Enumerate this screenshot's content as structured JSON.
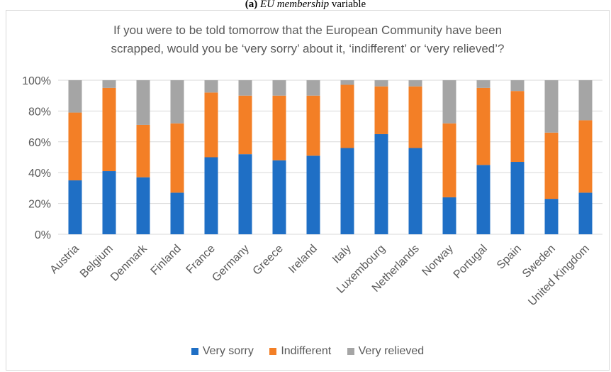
{
  "caption": {
    "label": "(a)",
    "variable": "EU membership",
    "suffix": " variable"
  },
  "chart_data": {
    "type": "bar",
    "stacked": true,
    "title_lines": [
      "If you were to be told tomorrow that the European Community have been",
      "scrapped, would you be ‘very sorry’ about it, ‘indifferent’ or ‘very relieved’?"
    ],
    "categories": [
      "Austria",
      "Belgium",
      "Denmark",
      "Finland",
      "France",
      "Germany",
      "Greece",
      "Ireland",
      "Italy",
      "Luxembourg",
      "Netherlands",
      "Norway",
      "Portugal",
      "Spain",
      "Sweden",
      "United Kingdom"
    ],
    "series": [
      {
        "name": "Very sorry",
        "color": "#1f6fc5",
        "values": [
          35,
          41,
          37,
          27,
          50,
          52,
          48,
          51,
          56,
          65,
          56,
          24,
          45,
          47,
          23,
          27
        ]
      },
      {
        "name": "Indifferent",
        "color": "#f37f26",
        "values": [
          44,
          54,
          34,
          45,
          42,
          38,
          42,
          39,
          41,
          31,
          40,
          48,
          50,
          46,
          43,
          47
        ]
      },
      {
        "name": "Very relieved",
        "color": "#a5a5a5",
        "values": [
          21,
          5,
          29,
          28,
          8,
          10,
          10,
          10,
          3,
          4,
          4,
          28,
          5,
          7,
          34,
          26
        ]
      }
    ],
    "ylim": [
      0,
      100
    ],
    "yticks": [
      "0%",
      "20%",
      "40%",
      "60%",
      "80%",
      "100%"
    ],
    "legend_position": "bottom"
  }
}
